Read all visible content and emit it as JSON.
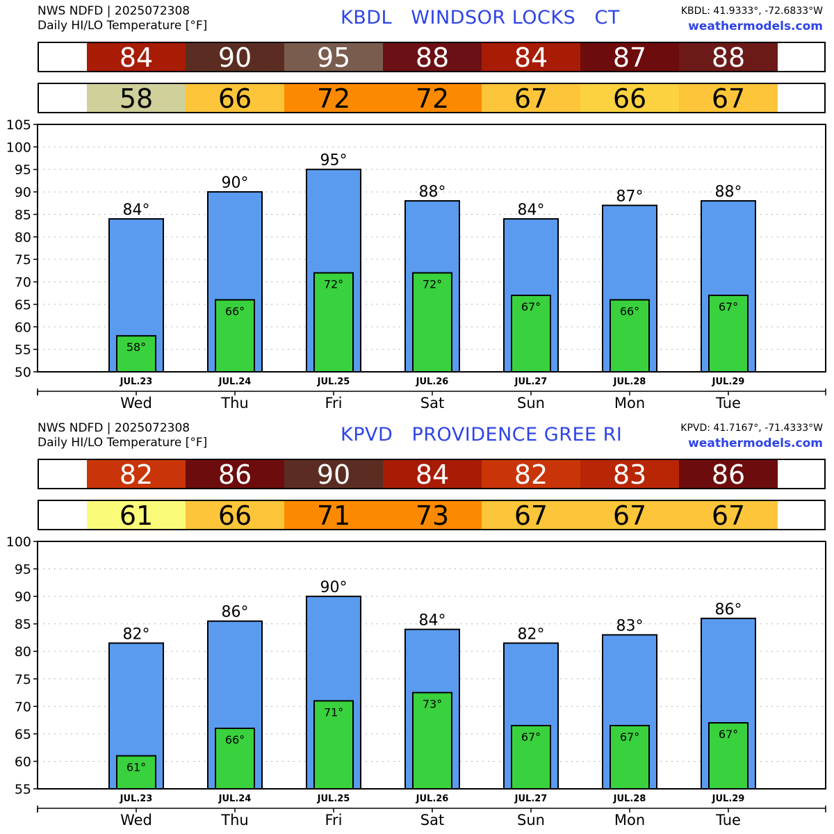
{
  "panels": [
    {
      "source": "NWS NDFD | 2025072308",
      "subtitle": "Daily HI/LO Temperature [°F]",
      "station_title": "KBDL   WINDSOR LOCKS   CT",
      "coords": "KBDL: 41.9333°, -72.6833°W",
      "site": "weathermodels.com",
      "hi_colors": [
        "#a81c05",
        "#5b2d22",
        "#7a5c4e",
        "#6b1014",
        "#a81c05",
        "#6d0c0c",
        "#6b1a18"
      ],
      "lo_colors": [
        "#cfd09a",
        "#fcc53a",
        "#fb8a00",
        "#fb8a00",
        "#fcc53a",
        "#fdd241",
        "#fcc53a"
      ],
      "chart_data": {
        "type": "bar",
        "categories": [
          "JUL.23",
          "JUL.24",
          "JUL.25",
          "JUL.26",
          "JUL.27",
          "JUL.28",
          "JUL.29"
        ],
        "days": [
          "Wed",
          "Thu",
          "Fri",
          "Sat",
          "Sun",
          "Mon",
          "Tue"
        ],
        "series": [
          {
            "values": [
              84,
              90,
              95,
              88,
              84,
              87,
              88
            ],
            "labels": [
              "84°",
              "90°",
              "95°",
              "88°",
              "84°",
              "87°",
              "88°"
            ],
            "strip": [
              "84",
              "90",
              "95",
              "88",
              "84",
              "87",
              "88"
            ],
            "color": "#5a9bef"
          },
          {
            "values": [
              58,
              66,
              72,
              72,
              67,
              66,
              67
            ],
            "labels": [
              "58°",
              "66°",
              "72°",
              "72°",
              "67°",
              "66°",
              "67°"
            ],
            "strip": [
              "58",
              "66",
              "72",
              "72",
              "67",
              "66",
              "67"
            ],
            "color": "#39d13d"
          }
        ],
        "ylim": [
          50,
          105
        ],
        "yticks": [
          "50",
          "55",
          "60",
          "65",
          "70",
          "75",
          "80",
          "85",
          "90",
          "95",
          "100",
          "105"
        ],
        "grid": true
      }
    },
    {
      "source": "NWS NDFD | 2025072308",
      "subtitle": "Daily HI/LO Temperature [°F]",
      "station_title": "KPVD   PROVIDENCE GREE RI",
      "coords": "KPVD: 41.7167°, -71.4333°W",
      "site": "weathermodels.com",
      "hi_colors": [
        "#c93508",
        "#6d0c0c",
        "#5b2d22",
        "#a81c05",
        "#c93508",
        "#b92606",
        "#6d0c0c"
      ],
      "lo_colors": [
        "#fbfb7a",
        "#fcc53a",
        "#fb8a00",
        "#fb8a00",
        "#fcc53a",
        "#fcc53a",
        "#fcc53a"
      ],
      "chart_data": {
        "type": "bar",
        "categories": [
          "JUL.23",
          "JUL.24",
          "JUL.25",
          "JUL.26",
          "JUL.27",
          "JUL.28",
          "JUL.29"
        ],
        "days": [
          "Wed",
          "Thu",
          "Fri",
          "Sat",
          "Sun",
          "Mon",
          "Tue"
        ],
        "series": [
          {
            "values": [
              81.5,
              85.5,
              90,
              84,
              81.5,
              83,
              86
            ],
            "labels": [
              "82°",
              "86°",
              "90°",
              "84°",
              "82°",
              "83°",
              "86°"
            ],
            "strip": [
              "82",
              "86",
              "90",
              "84",
              "82",
              "83",
              "86"
            ],
            "color": "#5a9bef"
          },
          {
            "values": [
              61,
              66,
              71,
              72.5,
              66.5,
              66.5,
              67
            ],
            "labels": [
              "61°",
              "66°",
              "71°",
              "73°",
              "67°",
              "67°",
              "67°"
            ],
            "strip": [
              "61",
              "66",
              "71",
              "73",
              "67",
              "67",
              "67"
            ],
            "color": "#39d13d"
          }
        ],
        "ylim": [
          55,
          100
        ],
        "yticks": [
          "55",
          "60",
          "65",
          "70",
          "75",
          "80",
          "85",
          "90",
          "95",
          "100"
        ],
        "grid": true
      }
    }
  ]
}
